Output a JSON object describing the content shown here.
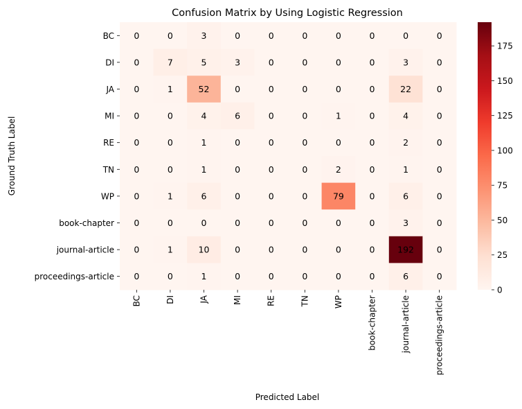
{
  "chart_data": {
    "type": "heatmap",
    "title": "Confusion Matrix by Using Logistic Regression",
    "xlabel": "Predicted Label",
    "ylabel": "Ground Truth Label",
    "x_categories": [
      "BC",
      "DI",
      "JA",
      "MI",
      "RE",
      "TN",
      "WP",
      "book-chapter",
      "journal-article",
      "proceedings-article"
    ],
    "y_categories": [
      "BC",
      "DI",
      "JA",
      "MI",
      "RE",
      "TN",
      "WP",
      "book-chapter",
      "journal-article",
      "proceedings-article"
    ],
    "values": [
      [
        0,
        0,
        3,
        0,
        0,
        0,
        0,
        0,
        0,
        0
      ],
      [
        0,
        7,
        5,
        3,
        0,
        0,
        0,
        0,
        3,
        0
      ],
      [
        0,
        1,
        52,
        0,
        0,
        0,
        0,
        0,
        22,
        0
      ],
      [
        0,
        0,
        4,
        6,
        0,
        0,
        1,
        0,
        4,
        0
      ],
      [
        0,
        0,
        1,
        0,
        0,
        0,
        0,
        0,
        2,
        0
      ],
      [
        0,
        0,
        1,
        0,
        0,
        0,
        2,
        0,
        1,
        0
      ],
      [
        0,
        1,
        6,
        0,
        0,
        0,
        79,
        0,
        6,
        0
      ],
      [
        0,
        0,
        0,
        0,
        0,
        0,
        0,
        0,
        3,
        0
      ],
      [
        0,
        1,
        10,
        0,
        0,
        0,
        0,
        0,
        192,
        0
      ],
      [
        0,
        0,
        1,
        0,
        0,
        0,
        0,
        0,
        6,
        0
      ]
    ],
    "colormap": "Reds",
    "colorbar": {
      "min": 0,
      "max": 192,
      "ticks": [
        0,
        25,
        50,
        75,
        100,
        125,
        150,
        175
      ]
    }
  }
}
